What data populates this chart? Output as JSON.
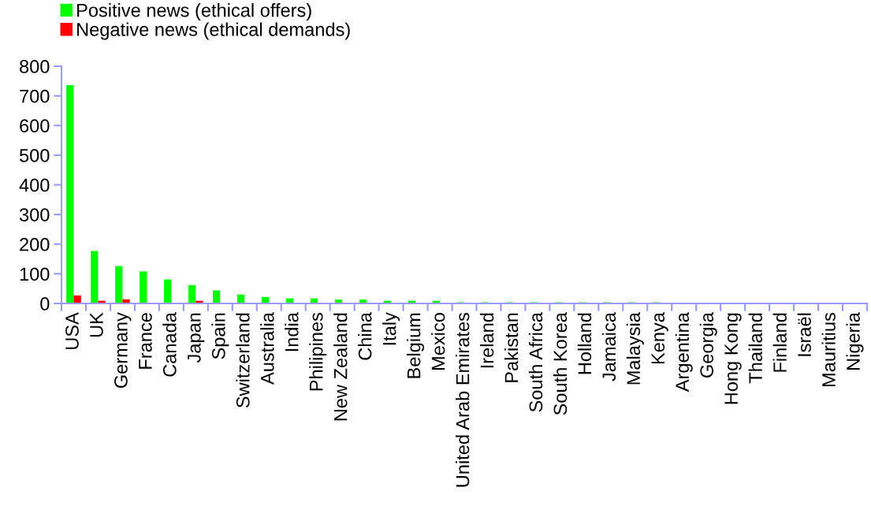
{
  "chart_data": {
    "type": "bar",
    "categories": [
      "USA",
      "UK",
      "Germany",
      "France",
      "Canada",
      "Japan",
      "Spain",
      "Switzerland",
      "Australia",
      "India",
      "Philipines",
      "New Zealand",
      "China",
      "Italy",
      "Belgium",
      "Mexico",
      "United Arab Emirates",
      "Ireland",
      "Pakistan",
      "South Africa",
      "South Korea",
      "Holland",
      "Jamaica",
      "Malaysia",
      "Kenya",
      "Argentina",
      "Georgia",
      "Hong Kong",
      "Thailand",
      "Finland",
      "Israël",
      "Mauritius",
      "Nigeria"
    ],
    "series": [
      {
        "name": "Positive news (ethical offers)",
        "color": "#00ff00",
        "values": [
          736,
          177,
          126,
          108,
          81,
          62,
          44,
          30,
          22,
          17,
          17,
          13,
          13,
          9,
          9,
          9,
          4,
          4,
          4,
          4,
          4,
          4,
          4,
          4,
          4,
          0,
          0,
          0,
          0,
          0,
          0,
          0,
          0
        ]
      },
      {
        "name": "Negative news (ethical demands)",
        "color": "#ff0000",
        "values": [
          27,
          9,
          14,
          0,
          0,
          9,
          0,
          0,
          0,
          0,
          0,
          0,
          0,
          0,
          0,
          0,
          0,
          0,
          0,
          0,
          0,
          0,
          0,
          0,
          0,
          0,
          0,
          0,
          0,
          0,
          0,
          0,
          0
        ]
      }
    ],
    "ylim": [
      0,
      800
    ],
    "yticks": [
      0,
      100,
      200,
      300,
      400,
      500,
      600,
      700,
      800
    ],
    "grid": false,
    "legend": "top left"
  }
}
